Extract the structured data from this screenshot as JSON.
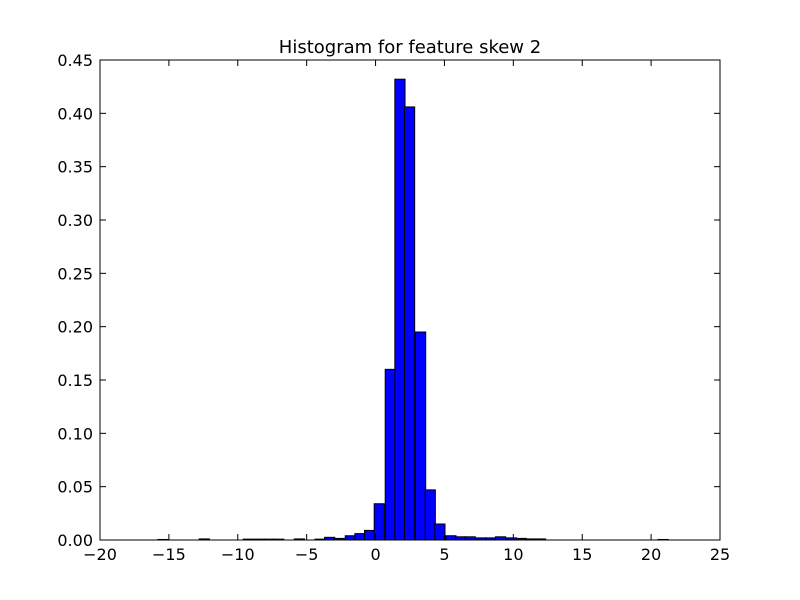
{
  "chart_data": {
    "type": "bar",
    "title": "Histogram for feature skew 2",
    "xlabel": "",
    "ylabel": "",
    "xlim": [
      -20,
      25
    ],
    "ylim": [
      0,
      0.45
    ],
    "grid": false,
    "bar_color": "#0000ff",
    "bar_edge_color": "#000000",
    "bin_width": 0.74,
    "xticks": [
      -20,
      -15,
      -10,
      -5,
      0,
      5,
      10,
      15,
      20,
      25
    ],
    "xtick_labels": [
      "−20",
      "−15",
      "−10",
      "−5",
      "0",
      "5",
      "10",
      "15",
      "20",
      "25"
    ],
    "yticks": [
      0,
      0.05,
      0.1,
      0.15,
      0.2,
      0.25,
      0.3,
      0.35,
      0.4,
      0.45
    ],
    "ytick_labels": [
      "0.00",
      "0.05",
      "0.10",
      "0.15",
      "0.20",
      "0.25",
      "0.30",
      "0.35",
      "0.40",
      "0.45"
    ],
    "bins": [
      {
        "x": -15.8,
        "y": 0.0005
      },
      {
        "x": -12.8,
        "y": 0.001
      },
      {
        "x": -9.6,
        "y": 0.0008
      },
      {
        "x": -8.8,
        "y": 0.0008
      },
      {
        "x": -8.1,
        "y": 0.0008
      },
      {
        "x": -7.4,
        "y": 0.0008
      },
      {
        "x": -5.9,
        "y": 0.001
      },
      {
        "x": -4.4,
        "y": 0.0008
      },
      {
        "x": -3.7,
        "y": 0.0025
      },
      {
        "x": -3.0,
        "y": 0.0015
      },
      {
        "x": -2.2,
        "y": 0.004
      },
      {
        "x": -1.5,
        "y": 0.006
      },
      {
        "x": -0.8,
        "y": 0.009
      },
      {
        "x": -0.1,
        "y": 0.034
      },
      {
        "x": 0.7,
        "y": 0.16
      },
      {
        "x": 1.4,
        "y": 0.432
      },
      {
        "x": 2.1,
        "y": 0.406
      },
      {
        "x": 2.9,
        "y": 0.195
      },
      {
        "x": 3.6,
        "y": 0.047
      },
      {
        "x": 4.3,
        "y": 0.015
      },
      {
        "x": 5.1,
        "y": 0.004
      },
      {
        "x": 5.8,
        "y": 0.003
      },
      {
        "x": 6.5,
        "y": 0.003
      },
      {
        "x": 7.3,
        "y": 0.002
      },
      {
        "x": 8.0,
        "y": 0.002
      },
      {
        "x": 8.7,
        "y": 0.003
      },
      {
        "x": 9.5,
        "y": 0.002
      },
      {
        "x": 10.2,
        "y": 0.0015
      },
      {
        "x": 10.9,
        "y": 0.001
      },
      {
        "x": 11.6,
        "y": 0.001
      },
      {
        "x": 20.5,
        "y": 0.0005
      }
    ]
  }
}
